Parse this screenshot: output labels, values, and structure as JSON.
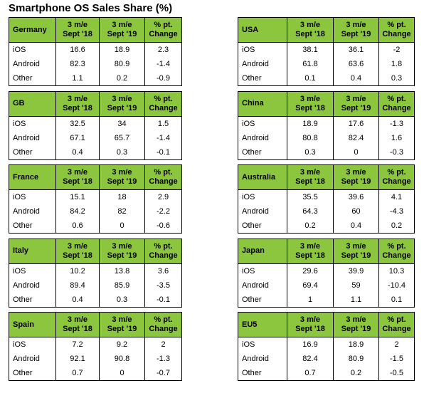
{
  "title": "Smartphone OS Sales Share (%)",
  "column_headers": [
    [
      "3 m/e",
      "Sept '18"
    ],
    [
      "3 m/e",
      "Sept '19"
    ],
    [
      "% pt.",
      "Change"
    ]
  ],
  "tables": [
    {
      "region": "Germany",
      "rows": [
        [
          "iOS",
          "16.6",
          "18.9",
          "2.3"
        ],
        [
          "Android",
          "82.3",
          "80.9",
          "-1.4"
        ],
        [
          "Other",
          "1.1",
          "0.2",
          "-0.9"
        ]
      ]
    },
    {
      "region": "GB",
      "rows": [
        [
          "iOS",
          "32.5",
          "34",
          "1.5"
        ],
        [
          "Android",
          "67.1",
          "65.7",
          "-1.4"
        ],
        [
          "Other",
          "0.4",
          "0.3",
          "-0.1"
        ]
      ]
    },
    {
      "region": "France",
      "rows": [
        [
          "iOS",
          "15.1",
          "18",
          "2.9"
        ],
        [
          "Android",
          "84.2",
          "82",
          "-2.2"
        ],
        [
          "Other",
          "0.6",
          "0",
          "-0.6"
        ]
      ]
    },
    {
      "region": "Italy",
      "rows": [
        [
          "iOS",
          "10.2",
          "13.8",
          "3.6"
        ],
        [
          "Android",
          "89.4",
          "85.9",
          "-3.5"
        ],
        [
          "Other",
          "0.4",
          "0.3",
          "-0.1"
        ]
      ]
    },
    {
      "region": "Spain",
      "rows": [
        [
          "iOS",
          "7.2",
          "9.2",
          "2"
        ],
        [
          "Android",
          "92.1",
          "90.8",
          "-1.3"
        ],
        [
          "Other",
          "0.7",
          "0",
          "-0.7"
        ]
      ]
    },
    {
      "region": "USA",
      "rows": [
        [
          "iOS",
          "38.1",
          "36.1",
          "-2"
        ],
        [
          "Android",
          "61.8",
          "63.6",
          "1.8"
        ],
        [
          "Other",
          "0.1",
          "0.4",
          "0.3"
        ]
      ]
    },
    {
      "region": "China",
      "rows": [
        [
          "iOS",
          "18.9",
          "17.6",
          "-1.3"
        ],
        [
          "Android",
          "80.8",
          "82.4",
          "1.6"
        ],
        [
          "Other",
          "0.3",
          "0",
          "-0.3"
        ]
      ]
    },
    {
      "region": "Australia",
      "rows": [
        [
          "iOS",
          "35.5",
          "39.6",
          "4.1"
        ],
        [
          "Android",
          "64.3",
          "60",
          "-4.3"
        ],
        [
          "Other",
          "0.2",
          "0.4",
          "0.2"
        ]
      ]
    },
    {
      "region": "Japan",
      "rows": [
        [
          "iOS",
          "29.6",
          "39.9",
          "10.3"
        ],
        [
          "Android",
          "69.4",
          "59",
          "-10.4"
        ],
        [
          "Other",
          "1",
          "1.1",
          "0.1"
        ]
      ]
    },
    {
      "region": "EU5",
      "rows": [
        [
          "iOS",
          "16.9",
          "18.9",
          "2"
        ],
        [
          "Android",
          "82.4",
          "80.9",
          "-1.5"
        ],
        [
          "Other",
          "0.7",
          "0.2",
          "-0.5"
        ]
      ]
    }
  ]
}
